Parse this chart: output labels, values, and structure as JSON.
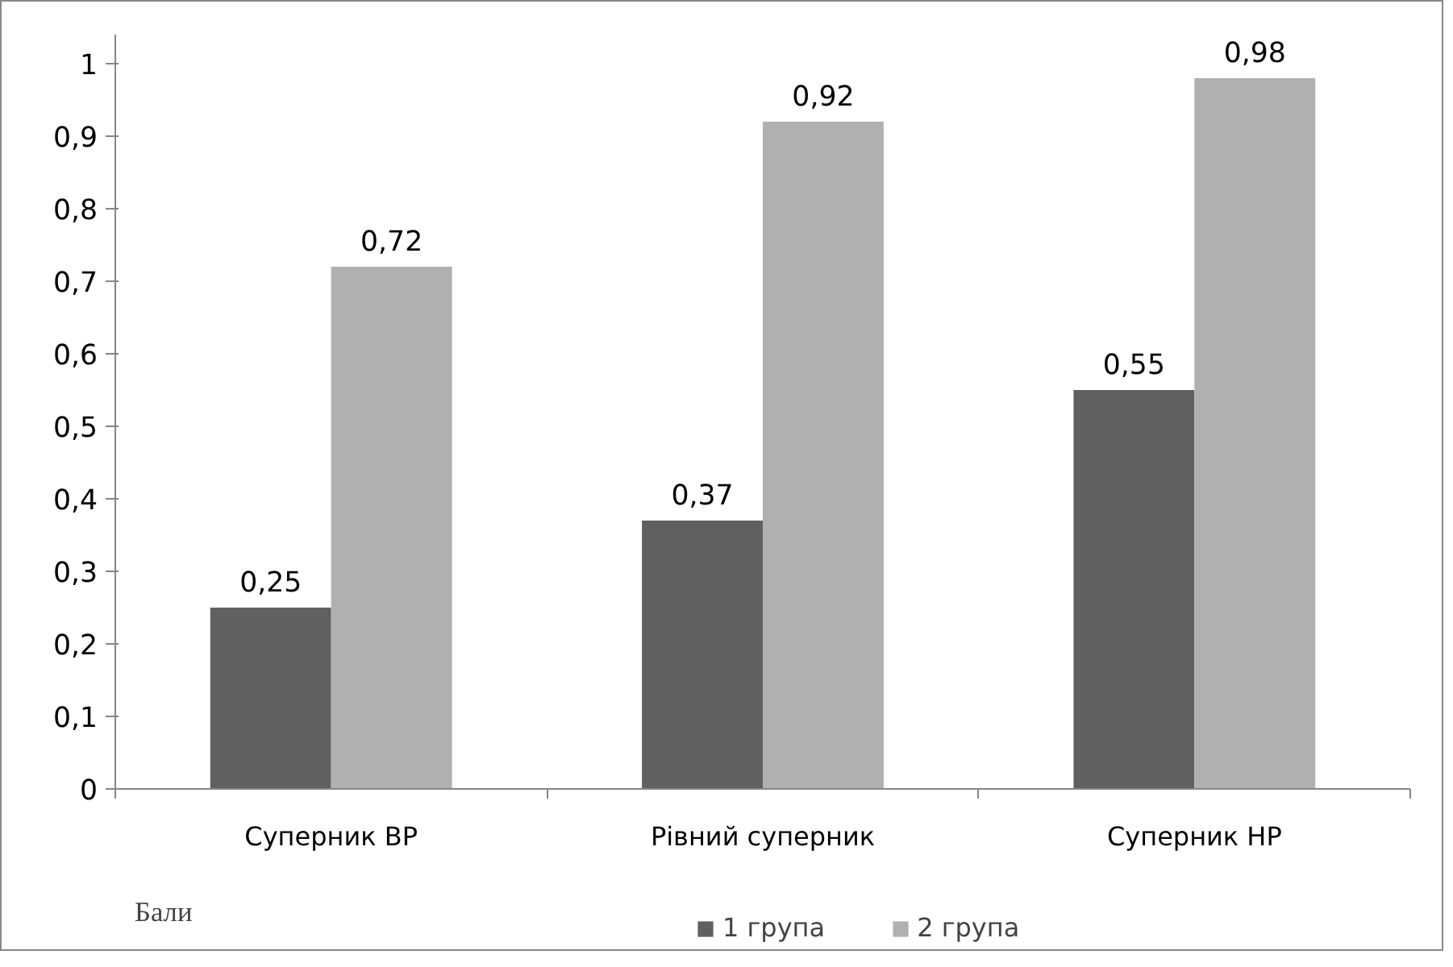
{
  "chart_data": {
    "type": "bar",
    "categories": [
      "Суперник ВР",
      "Рівний суперник",
      "Суперник НР"
    ],
    "series": [
      {
        "name": "1 група",
        "color": "#606060",
        "values": [
          0.25,
          0.37,
          0.55
        ],
        "value_labels": [
          "0,25",
          "0,37",
          "0,55"
        ]
      },
      {
        "name": "2 група",
        "color": "#b0b0b0",
        "values": [
          0.72,
          0.92,
          0.98
        ],
        "value_labels": [
          "0,72",
          "0,92",
          "0,98"
        ]
      }
    ],
    "ylim": [
      0,
      1.04
    ],
    "yticks": [
      0,
      {
        "value": 0.1,
        "label": "0,1"
      },
      {
        "value": 0.2,
        "label": "0,2"
      },
      {
        "value": 0.3,
        "label": "0,3"
      },
      {
        "value": 0.4,
        "label": "0,4"
      },
      {
        "value": 0.5,
        "label": "0,5"
      },
      {
        "value": 0.6,
        "label": "0,6"
      },
      {
        "value": 0.7,
        "label": "0,7"
      },
      {
        "value": 0.8,
        "label": "0,8"
      },
      {
        "value": 0.9,
        "label": "0,9"
      },
      1
    ],
    "grid": false,
    "legend": "bottom",
    "annotations": [
      "Бали"
    ]
  }
}
